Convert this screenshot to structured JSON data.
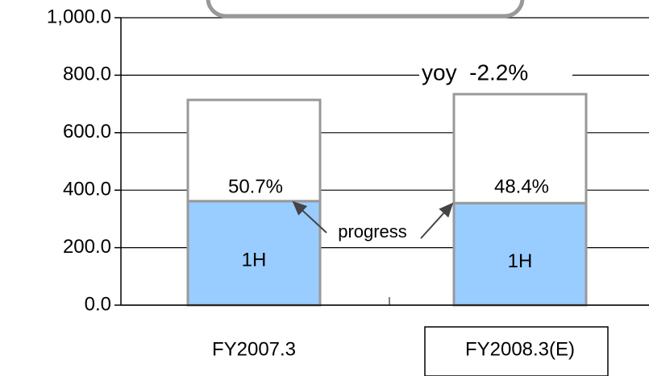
{
  "chart_data": {
    "type": "stacked_bar",
    "categories": [
      "FY2007.3",
      "FY2008.3(E)"
    ],
    "series": [
      {
        "name": "1H",
        "color": "#99ccff",
        "values": [
          362,
          355
        ]
      },
      {
        "color": "#ffffff",
        "values": [
          352,
          379
        ]
      }
    ],
    "ylim": [
      0,
      1000
    ],
    "yticks": [
      {
        "value": 0,
        "label": "0.0"
      },
      {
        "value": 200,
        "label": "200.0"
      },
      {
        "value": 400,
        "label": "400.0"
      },
      {
        "value": 600,
        "label": "600.0"
      },
      {
        "value": 800,
        "label": "800.0"
      },
      {
        "value": 1000,
        "label": "1,000.0"
      }
    ],
    "grid": true,
    "annotations": [
      "50.7%",
      "48.4%",
      "progress",
      "yoy  -2.2%"
    ]
  }
}
